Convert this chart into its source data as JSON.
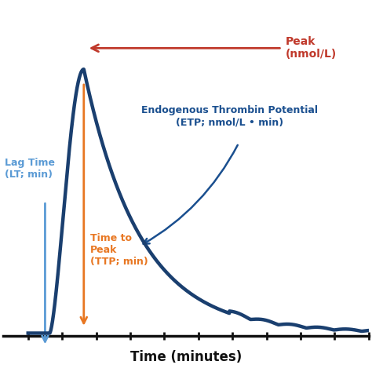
{
  "xlabel": "Time (minutes)",
  "background_color": "#ffffff",
  "curve_color": "#1a3f6f",
  "curve_linewidth": 3.2,
  "peak_arrow_color": "#c0392b",
  "peak_label": "Peak\n(nmol/L)",
  "peak_label_color": "#c0392b",
  "ttp_arrow_color": "#e87722",
  "ttp_label": "Time to\nPeak\n(TTP; min)",
  "ttp_label_color": "#e87722",
  "lag_label": "Lag Time\n(LT; min)",
  "lag_label_color": "#5b9bd5",
  "lag_arrow_color": "#5b9bd5",
  "etp_label": "Endogenous Thrombin Potential\n(ETP; nmol/L • min)",
  "etp_label_color": "#1a4f8f",
  "etp_arrow_color": "#1a4f8f",
  "lag_time": 7,
  "peak_time": 18,
  "peak_value": 1.0,
  "axis_color": "#111111",
  "tick_color": "#111111",
  "figsize": [
    4.74,
    4.74
  ],
  "dpi": 100
}
